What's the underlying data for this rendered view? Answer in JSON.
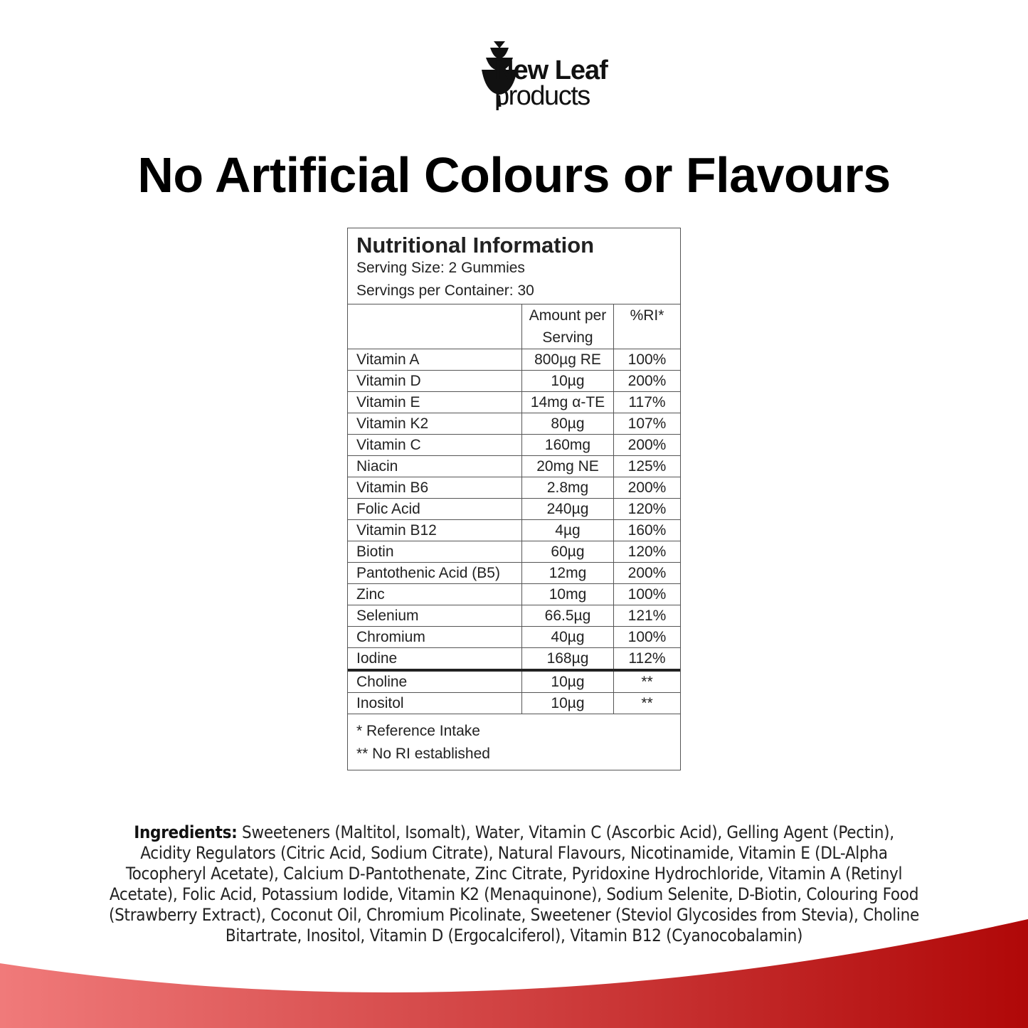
{
  "brand": {
    "name_line1": "New Leaf",
    "name_line2": "products"
  },
  "headline": "No Artificial Colours or Flavours",
  "nutrition": {
    "title": "Nutritional Information",
    "serving_size": "Serving Size: 2 Gummies",
    "servings_per_container": "Servings per Container: 30",
    "headers": [
      "",
      "Amount per Serving",
      "%RI*"
    ],
    "rows": [
      {
        "name": "Vitamin A",
        "amount": "800µg RE",
        "ri": "100%"
      },
      {
        "name": "Vitamin D",
        "amount": "10µg",
        "ri": "200%"
      },
      {
        "name": "Vitamin E",
        "amount": "14mg α-TE",
        "ri": "117%"
      },
      {
        "name": "Vitamin K2",
        "amount": "80µg",
        "ri": "107%"
      },
      {
        "name": "Vitamin C",
        "amount": "160mg",
        "ri": "200%"
      },
      {
        "name": "Niacin",
        "amount": "20mg NE",
        "ri": "125%"
      },
      {
        "name": "Vitamin B6",
        "amount": "2.8mg",
        "ri": "200%"
      },
      {
        "name": "Folic Acid",
        "amount": "240µg",
        "ri": "120%"
      },
      {
        "name": "Vitamin B12",
        "amount": "4µg",
        "ri": "160%"
      },
      {
        "name": "Biotin",
        "amount": "60µg",
        "ri": "120%"
      },
      {
        "name": "Pantothenic Acid (B5)",
        "amount": "12mg",
        "ri": "200%"
      },
      {
        "name": "Zinc",
        "amount": "10mg",
        "ri": "100%"
      },
      {
        "name": "Selenium",
        "amount": "66.5µg",
        "ri": "121%"
      },
      {
        "name": "Chromium",
        "amount": "40µg",
        "ri": "100%"
      },
      {
        "name": "Iodine",
        "amount": "168µg",
        "ri": "112%"
      }
    ],
    "extra_rows": [
      {
        "name": "Choline",
        "amount": "10µg",
        "ri": "**"
      },
      {
        "name": "Inositol",
        "amount": "10µg",
        "ri": "**"
      }
    ],
    "notes": [
      "* Reference Intake",
      "** No RI established"
    ]
  },
  "ingredients": {
    "label": "Ingredients:",
    "text": " Sweeteners (Maltitol, Isomalt), Water, Vitamin C (Ascorbic Acid), Gelling Agent (Pectin), Acidity Regulators (Citric Acid, Sodium Citrate), Natural Flavours, Nicotinamide, Vitamin E (DL-Alpha Tocopheryl Acetate), Calcium D-Pantothenate, Zinc Citrate, Pyridoxine Hydrochloride, Vitamin A (Retinyl Acetate), Folic Acid, Potassium Iodide, Vitamin K2 (Menaquinone), Sodium Selenite, D-Biotin, Colouring Food (Strawberry Extract), Coconut Oil, Chromium Picolinate, Sweetener (Steviol Glycosides from Stevia), Choline Bitartrate, Inositol, Vitamin D (Ergocalciferol), Vitamin B12 (Cyanocobalamin)"
  },
  "colors": {
    "wave_left": "#f07a7a",
    "wave_right": "#b00808"
  }
}
